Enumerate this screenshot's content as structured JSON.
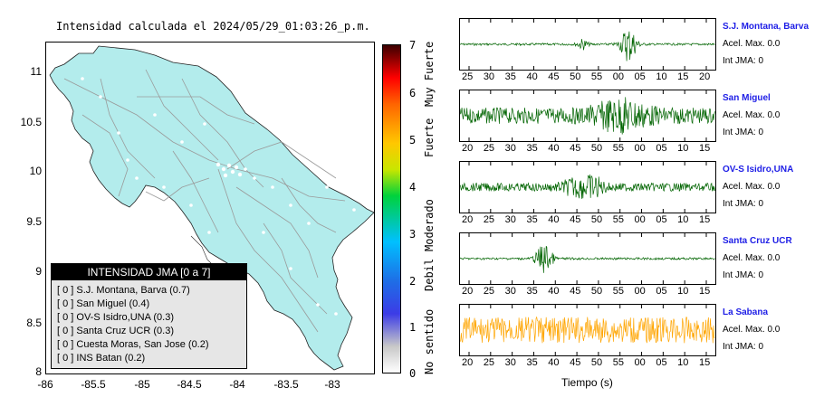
{
  "map": {
    "title": "Intensidad calculada el 2024/05/29_01:03:26_p.m.",
    "land_color": "#b3ecec",
    "road_color": "#9a9a9a",
    "lat_ticks": [
      "11",
      "10.5",
      "10",
      "9.5",
      "9",
      "8.5",
      "8"
    ],
    "lon_ticks": [
      "-86",
      "-85.5",
      "-85",
      "-84.5",
      "-84",
      "-83.5",
      "-83"
    ]
  },
  "legend": {
    "header": "INTENSIDAD JMA [0 a 7]",
    "rows": [
      "[ 0 ]  S.J. Montana, Barva (0.7)",
      "[ 0 ]  San Miguel (0.4)",
      "[ 0 ]  OV-S Isidro,UNA (0.3)",
      "[ 0 ]  Santa Cruz UCR (0.3)",
      "[ 0 ]  Cuesta Moras, San Jose (0.2)",
      "[ 0 ]  INS Batan (0.2)"
    ]
  },
  "colorbar": {
    "numbers": [
      "7",
      "6",
      "5",
      "4",
      "3",
      "2",
      "1",
      "0"
    ],
    "words": [
      "Muy Fuerte",
      "Fuerte",
      "Moderado",
      "Debil",
      "No sentido"
    ]
  },
  "stations": [
    {
      "name": "S.J. Montana, Barva",
      "accel": "Acel. Max. 0.0",
      "int": "Int JMA: 0",
      "color": "#006400",
      "ticks": [
        "25",
        "30",
        "35",
        "40",
        "45",
        "50",
        "55",
        "00",
        "05",
        "10",
        "15",
        "20"
      ]
    },
    {
      "name": "San Miguel",
      "accel": "Acel. Max. 0.0",
      "int": "Int JMA: 0",
      "color": "#006400",
      "ticks": [
        "20",
        "25",
        "30",
        "35",
        "40",
        "45",
        "50",
        "55",
        "00",
        "05",
        "10",
        "15"
      ]
    },
    {
      "name": "OV-S Isidro,UNA",
      "accel": "Acel. Max. 0.0",
      "int": "Int JMA: 0",
      "color": "#006400",
      "ticks": [
        "20",
        "25",
        "30",
        "35",
        "40",
        "45",
        "50",
        "55",
        "00",
        "05",
        "10",
        "15"
      ]
    },
    {
      "name": "Santa Cruz UCR",
      "accel": "Acel. Max. 0.0",
      "int": "Int JMA: 0",
      "color": "#006400",
      "ticks": [
        "20",
        "25",
        "30",
        "35",
        "40",
        "45",
        "50",
        "55",
        "00",
        "05",
        "10",
        "15"
      ]
    },
    {
      "name": "La Sabana",
      "accel": "Acel. Max. 0.0",
      "int": "Int JMA: 0",
      "color": "#ffa500",
      "ticks": [
        "20",
        "25",
        "30",
        "35",
        "40",
        "45",
        "50",
        "55",
        "00",
        "05",
        "10",
        "15"
      ]
    }
  ],
  "xaxis_title": "Tiempo (s)"
}
